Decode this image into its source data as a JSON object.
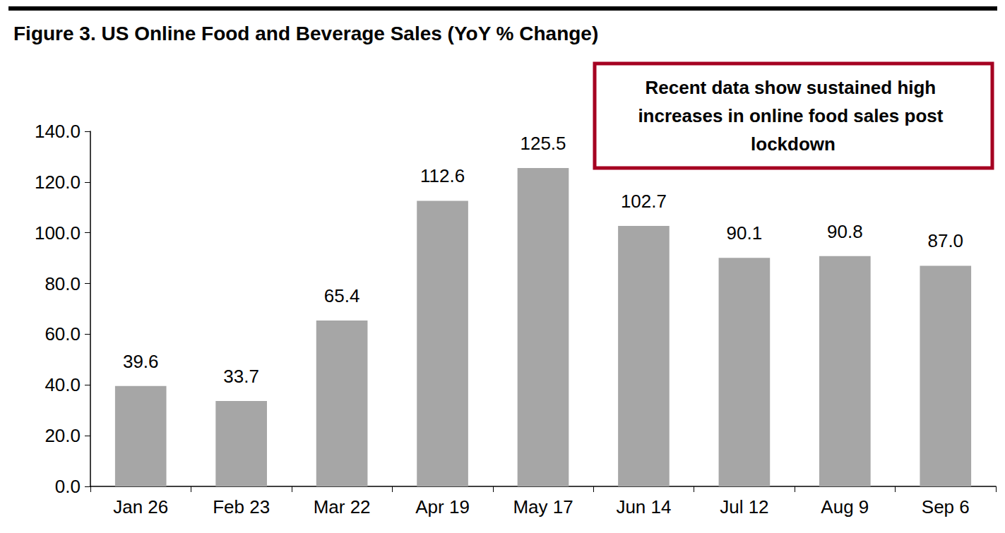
{
  "chart_data": {
    "type": "bar",
    "title": "Figure 3. US Online Food and Beverage Sales (YoY % Change)",
    "annotations": [
      "Recent data show sustained high increases in online food sales post lockdown"
    ],
    "categories": [
      "Jan 26",
      "Feb 23",
      "Mar 22",
      "Apr 19",
      "May 17",
      "Jun 14",
      "Jul 12",
      "Aug 9",
      "Sep 6"
    ],
    "values": [
      39.6,
      33.7,
      65.4,
      112.6,
      125.5,
      102.7,
      90.1,
      90.8,
      87.0
    ],
    "value_labels": [
      "39.6",
      "33.7",
      "65.4",
      "112.6",
      "125.5",
      "102.7",
      "90.1",
      "90.8",
      "87.0"
    ],
    "color": "#a6a6a6",
    "ylim": [
      0,
      140
    ],
    "yticks": [
      {
        "value": 0,
        "label": "0.0"
      },
      {
        "value": 20,
        "label": "20.0"
      },
      {
        "value": 40,
        "label": "40.0"
      },
      {
        "value": 60,
        "label": "60.0"
      },
      {
        "value": 80,
        "label": "80.0"
      },
      {
        "value": 100,
        "label": "100.0"
      },
      {
        "value": 120,
        "label": "120.0"
      },
      {
        "value": 140,
        "label": "140.0"
      }
    ],
    "grid": false,
    "data_labels": true
  }
}
